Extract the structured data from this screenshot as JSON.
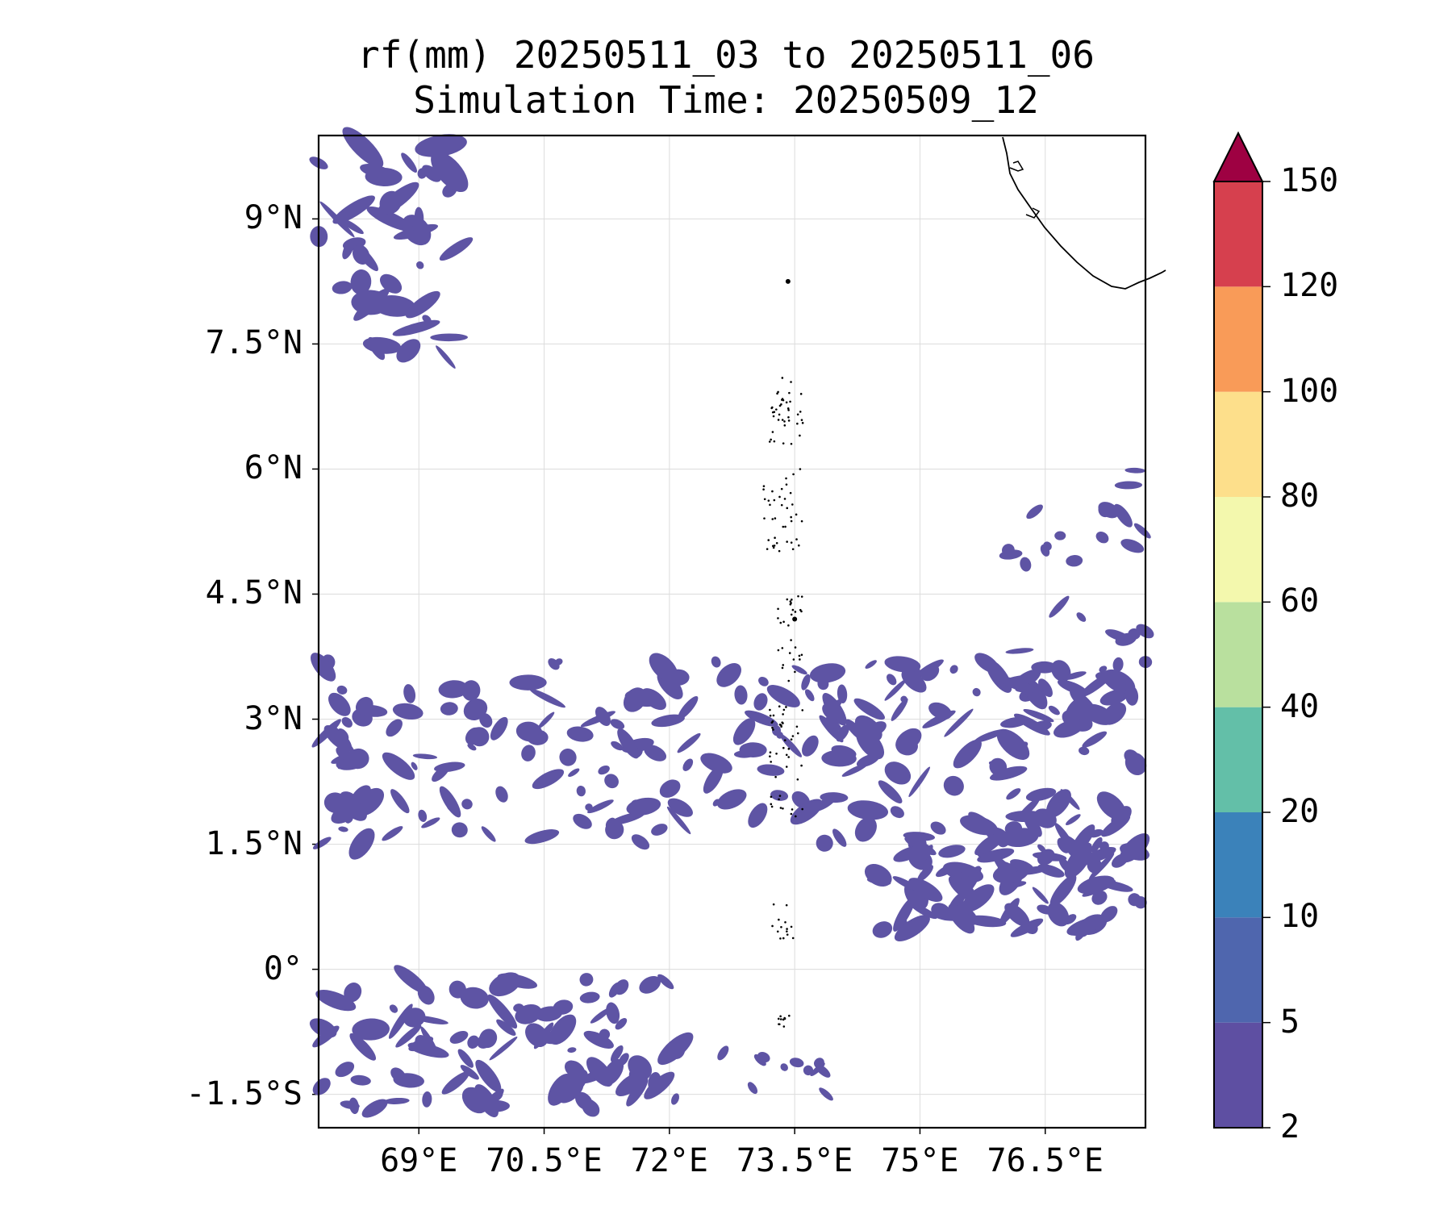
{
  "title_line1": "rf(mm) 20250511_03 to 20250511_06",
  "title_line2": "Simulation Time: 20250509_12",
  "map": {
    "lon_range": [
      67.8,
      77.7
    ],
    "lat_range": [
      -1.9,
      10.0
    ],
    "x_ticks": [
      {
        "value": 69,
        "label": "69°E"
      },
      {
        "value": 70.5,
        "label": "70.5°E"
      },
      {
        "value": 72,
        "label": "72°E"
      },
      {
        "value": 73.5,
        "label": "73.5°E"
      },
      {
        "value": 75,
        "label": "75°E"
      },
      {
        "value": 76.5,
        "label": "76.5°E"
      }
    ],
    "y_ticks": [
      {
        "value": 9,
        "label": "9°N"
      },
      {
        "value": 7.5,
        "label": "7.5°N"
      },
      {
        "value": 6,
        "label": "6°N"
      },
      {
        "value": 4.5,
        "label": "4.5°N"
      },
      {
        "value": 3,
        "label": "3°N"
      },
      {
        "value": 1.5,
        "label": "1.5°N"
      },
      {
        "value": 0,
        "label": "0°"
      },
      {
        "value": -1.5,
        "label": "-1.5°S"
      }
    ],
    "grid": true,
    "rain_color": "#5e54a4"
  },
  "colorbar": {
    "levels": [
      {
        "label": "2"
      },
      {
        "label": "5"
      },
      {
        "label": "10"
      },
      {
        "label": "20"
      },
      {
        "label": "40"
      },
      {
        "label": "60"
      },
      {
        "label": "80"
      },
      {
        "label": "100"
      },
      {
        "label": "120"
      },
      {
        "label": "150"
      }
    ],
    "colors": [
      "#5e4fa2",
      "#4f66ae",
      "#3b82ba",
      "#63bfa8",
      "#b9e09e",
      "#f3f8ad",
      "#fddf8b",
      "#f99b58",
      "#d6404e"
    ],
    "extend_color": "#9e0142",
    "extend": "max"
  }
}
